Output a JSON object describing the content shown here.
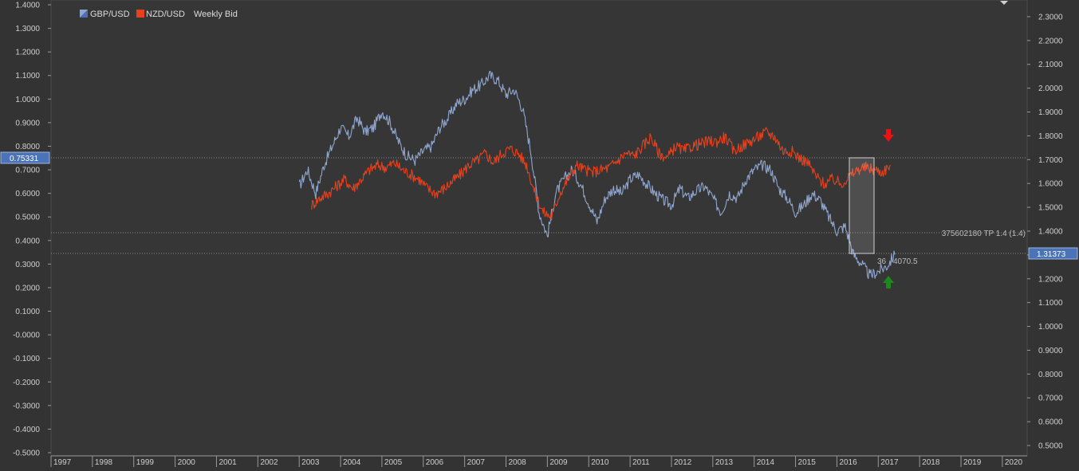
{
  "chart_data": {
    "type": "line",
    "title": "",
    "legend": {
      "placement": "top-left",
      "entries": [
        {
          "label": "GBP/USD",
          "color": "#8fa6cf"
        },
        {
          "label": "NZD/USD",
          "color": "#e8401c"
        },
        {
          "label": "Weekly Bid"
        }
      ]
    },
    "x_axis": {
      "labels": [
        "1997",
        "1998",
        "1999",
        "2000",
        "2001",
        "2002",
        "2003",
        "2004",
        "2005",
        "2006",
        "2007",
        "2008",
        "2009",
        "2010",
        "2011",
        "2012",
        "2013",
        "2014",
        "2015",
        "2016",
        "2017",
        "2018",
        "2019",
        "2020"
      ],
      "range": [
        1997.0,
        2020.6
      ]
    },
    "left_axis": {
      "labels": [
        "1.4000",
        "1.3000",
        "1.2000",
        "1.1000",
        "1.0000",
        "0.9000",
        "0.8000",
        "0.7000",
        "0.6000",
        "0.5000",
        "0.4000",
        "0.3000",
        "0.2000",
        "0.1000",
        "-0.0000",
        "-0.1000",
        "-0.2000",
        "-0.3000",
        "-0.4000",
        "-0.5000"
      ],
      "range": [
        -0.5,
        1.4
      ],
      "current_value": "0.75331"
    },
    "right_axis": {
      "labels": [
        "2.3000",
        "2.2000",
        "2.1000",
        "2.0000",
        "1.9000",
        "1.8000",
        "1.7000",
        "1.6000",
        "1.5000",
        "1.4000",
        "1.3000",
        "1.2000",
        "1.1000",
        "1.0000",
        "0.9000",
        "0.8000",
        "0.7000",
        "0.6000",
        "0.5000"
      ],
      "range": [
        0.47,
        2.35
      ],
      "current_value": "1.31373"
    },
    "series": [
      {
        "name": "GBP/USD",
        "axis": "left",
        "color": "#8fa6cf",
        "x": [
          2003.0,
          2003.2,
          2003.4,
          2003.6,
          2003.8,
          2004.0,
          2004.2,
          2004.4,
          2004.6,
          2004.8,
          2005.0,
          2005.2,
          2005.4,
          2005.6,
          2005.8,
          2006.0,
          2006.2,
          2006.4,
          2006.6,
          2006.8,
          2007.0,
          2007.2,
          2007.4,
          2007.6,
          2007.8,
          2008.0,
          2008.2,
          2008.4,
          2008.6,
          2008.8,
          2009.0,
          2009.2,
          2009.4,
          2009.6,
          2009.8,
          2010.0,
          2010.2,
          2010.4,
          2010.6,
          2010.8,
          2011.0,
          2011.2,
          2011.4,
          2011.6,
          2011.8,
          2012.0,
          2012.2,
          2012.4,
          2012.6,
          2012.8,
          2013.0,
          2013.2,
          2013.4,
          2013.6,
          2013.8,
          2014.0,
          2014.2,
          2014.4,
          2014.6,
          2014.8,
          2015.0,
          2015.2,
          2015.4,
          2015.6,
          2015.8,
          2016.0,
          2016.2,
          2016.4,
          2016.6,
          2016.8,
          2017.0,
          2017.2,
          2017.4
        ],
        "y": [
          0.63,
          0.7,
          0.6,
          0.72,
          0.8,
          0.88,
          0.84,
          0.92,
          0.86,
          0.88,
          0.95,
          0.9,
          0.82,
          0.76,
          0.74,
          0.78,
          0.8,
          0.88,
          0.92,
          0.98,
          1.0,
          1.04,
          1.06,
          1.1,
          1.08,
          1.02,
          1.04,
          0.96,
          0.78,
          0.52,
          0.42,
          0.6,
          0.66,
          0.7,
          0.64,
          0.56,
          0.48,
          0.58,
          0.62,
          0.6,
          0.66,
          0.68,
          0.64,
          0.6,
          0.57,
          0.55,
          0.62,
          0.58,
          0.61,
          0.63,
          0.58,
          0.52,
          0.6,
          0.58,
          0.66,
          0.7,
          0.72,
          0.7,
          0.62,
          0.58,
          0.52,
          0.55,
          0.6,
          0.57,
          0.5,
          0.44,
          0.46,
          0.34,
          0.3,
          0.25,
          0.27,
          0.29,
          0.34
        ]
      },
      {
        "name": "NZD/USD",
        "axis": "left",
        "color": "#e8401c",
        "x": [
          2003.3,
          2003.5,
          2003.7,
          2003.9,
          2004.1,
          2004.3,
          2004.5,
          2004.7,
          2004.9,
          2005.1,
          2005.3,
          2005.5,
          2005.7,
          2005.9,
          2006.1,
          2006.3,
          2006.5,
          2006.7,
          2006.9,
          2007.1,
          2007.3,
          2007.5,
          2007.7,
          2007.9,
          2008.1,
          2008.3,
          2008.5,
          2008.7,
          2008.9,
          2009.1,
          2009.3,
          2009.5,
          2009.7,
          2009.9,
          2010.1,
          2010.3,
          2010.5,
          2010.7,
          2010.9,
          2011.1,
          2011.3,
          2011.5,
          2011.7,
          2011.9,
          2012.1,
          2012.3,
          2012.5,
          2012.7,
          2012.9,
          2013.1,
          2013.3,
          2013.5,
          2013.7,
          2013.9,
          2014.1,
          2014.3,
          2014.5,
          2014.7,
          2014.9,
          2015.1,
          2015.3,
          2015.5,
          2015.7,
          2015.9,
          2016.1,
          2016.3,
          2016.5,
          2016.7,
          2016.9,
          2017.1,
          2017.3
        ],
        "y": [
          0.55,
          0.58,
          0.6,
          0.63,
          0.66,
          0.62,
          0.66,
          0.7,
          0.72,
          0.71,
          0.73,
          0.7,
          0.68,
          0.66,
          0.62,
          0.6,
          0.62,
          0.65,
          0.68,
          0.72,
          0.74,
          0.77,
          0.73,
          0.77,
          0.79,
          0.77,
          0.72,
          0.6,
          0.52,
          0.5,
          0.6,
          0.66,
          0.72,
          0.7,
          0.69,
          0.7,
          0.71,
          0.74,
          0.77,
          0.76,
          0.8,
          0.84,
          0.77,
          0.75,
          0.8,
          0.78,
          0.8,
          0.81,
          0.82,
          0.82,
          0.84,
          0.78,
          0.8,
          0.82,
          0.84,
          0.86,
          0.84,
          0.78,
          0.78,
          0.75,
          0.73,
          0.67,
          0.64,
          0.66,
          0.64,
          0.67,
          0.7,
          0.71,
          0.7,
          0.69,
          0.72
        ]
      }
    ],
    "annotations": {
      "tp_label": "375602180 TP 1.4 (1.4)",
      "note_label": "36",
      "note_label_2": "4070.5"
    },
    "grid": false
  }
}
